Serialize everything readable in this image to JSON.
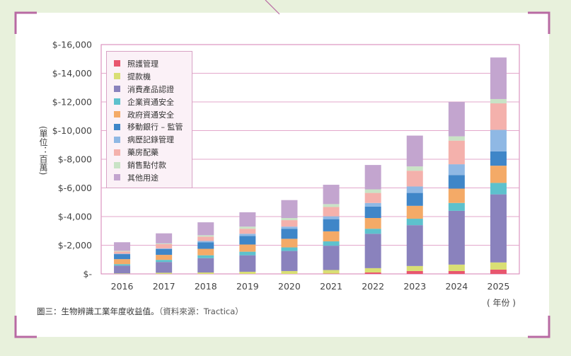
{
  "caption": {
    "main": "圖三：生物辨識工業年度收益值。",
    "source": "（資料來源：Tractica）"
  },
  "unit_label": "(單位：百萬)",
  "x_unit": "( 年份 )",
  "chart_data": {
    "type": "bar",
    "stacked": true,
    "categories": [
      "2016",
      "2017",
      "2018",
      "2019",
      "2020",
      "2021",
      "2022",
      "2023",
      "2024",
      "2025"
    ],
    "ylim": [
      0,
      16000
    ],
    "yticks": [
      0,
      2000,
      4000,
      6000,
      8000,
      10000,
      12000,
      14000,
      16000
    ],
    "ytick_labels": [
      "$-",
      "$-2,000",
      "$-4,000",
      "$-6,000",
      "$-8,000",
      "$-10,000",
      "$-12,000",
      "$-14,000",
      "$-16,000"
    ],
    "grid": true,
    "legend_position": "top-left",
    "series": [
      {
        "name": "照護管理",
        "color": "#e8566e",
        "values": [
          0,
          0,
          0,
          0,
          0,
          20,
          100,
          200,
          200,
          300
        ]
      },
      {
        "name": "提款機",
        "color": "#d9df74",
        "values": [
          30,
          80,
          100,
          150,
          200,
          250,
          300,
          350,
          450,
          500
        ]
      },
      {
        "name": "消費產品認證",
        "color": "#8a82bd",
        "values": [
          550,
          750,
          1000,
          1150,
          1400,
          1700,
          2400,
          2850,
          3750,
          4750
        ]
      },
      {
        "name": "企業資通安全",
        "color": "#5dc1cd",
        "values": [
          100,
          150,
          200,
          250,
          250,
          300,
          350,
          450,
          550,
          800
        ]
      },
      {
        "name": "政府資通安全",
        "color": "#f4aa67",
        "values": [
          350,
          350,
          450,
          500,
          600,
          700,
          750,
          900,
          1000,
          1200
        ]
      },
      {
        "name": "移動銀行 – 監管",
        "color": "#3f86c8",
        "values": [
          350,
          400,
          450,
          600,
          700,
          850,
          800,
          900,
          950,
          1000
        ]
      },
      {
        "name": "病歷記錄管理",
        "color": "#8fb8e4",
        "values": [
          30,
          50,
          100,
          150,
          150,
          200,
          250,
          450,
          750,
          1500
        ]
      },
      {
        "name": "藥房配藥",
        "color": "#f4b1ac",
        "values": [
          150,
          300,
          300,
          350,
          450,
          650,
          700,
          1100,
          1650,
          1850
        ]
      },
      {
        "name": "銷售點付款",
        "color": "#c9e3c6",
        "values": [
          50,
          50,
          100,
          150,
          150,
          200,
          250,
          300,
          300,
          300
        ]
      },
      {
        "name": "其他用途",
        "color": "#c3a5cf",
        "values": [
          600,
          700,
          900,
          1000,
          1250,
          1350,
          1700,
          2150,
          2400,
          2900
        ]
      }
    ]
  }
}
